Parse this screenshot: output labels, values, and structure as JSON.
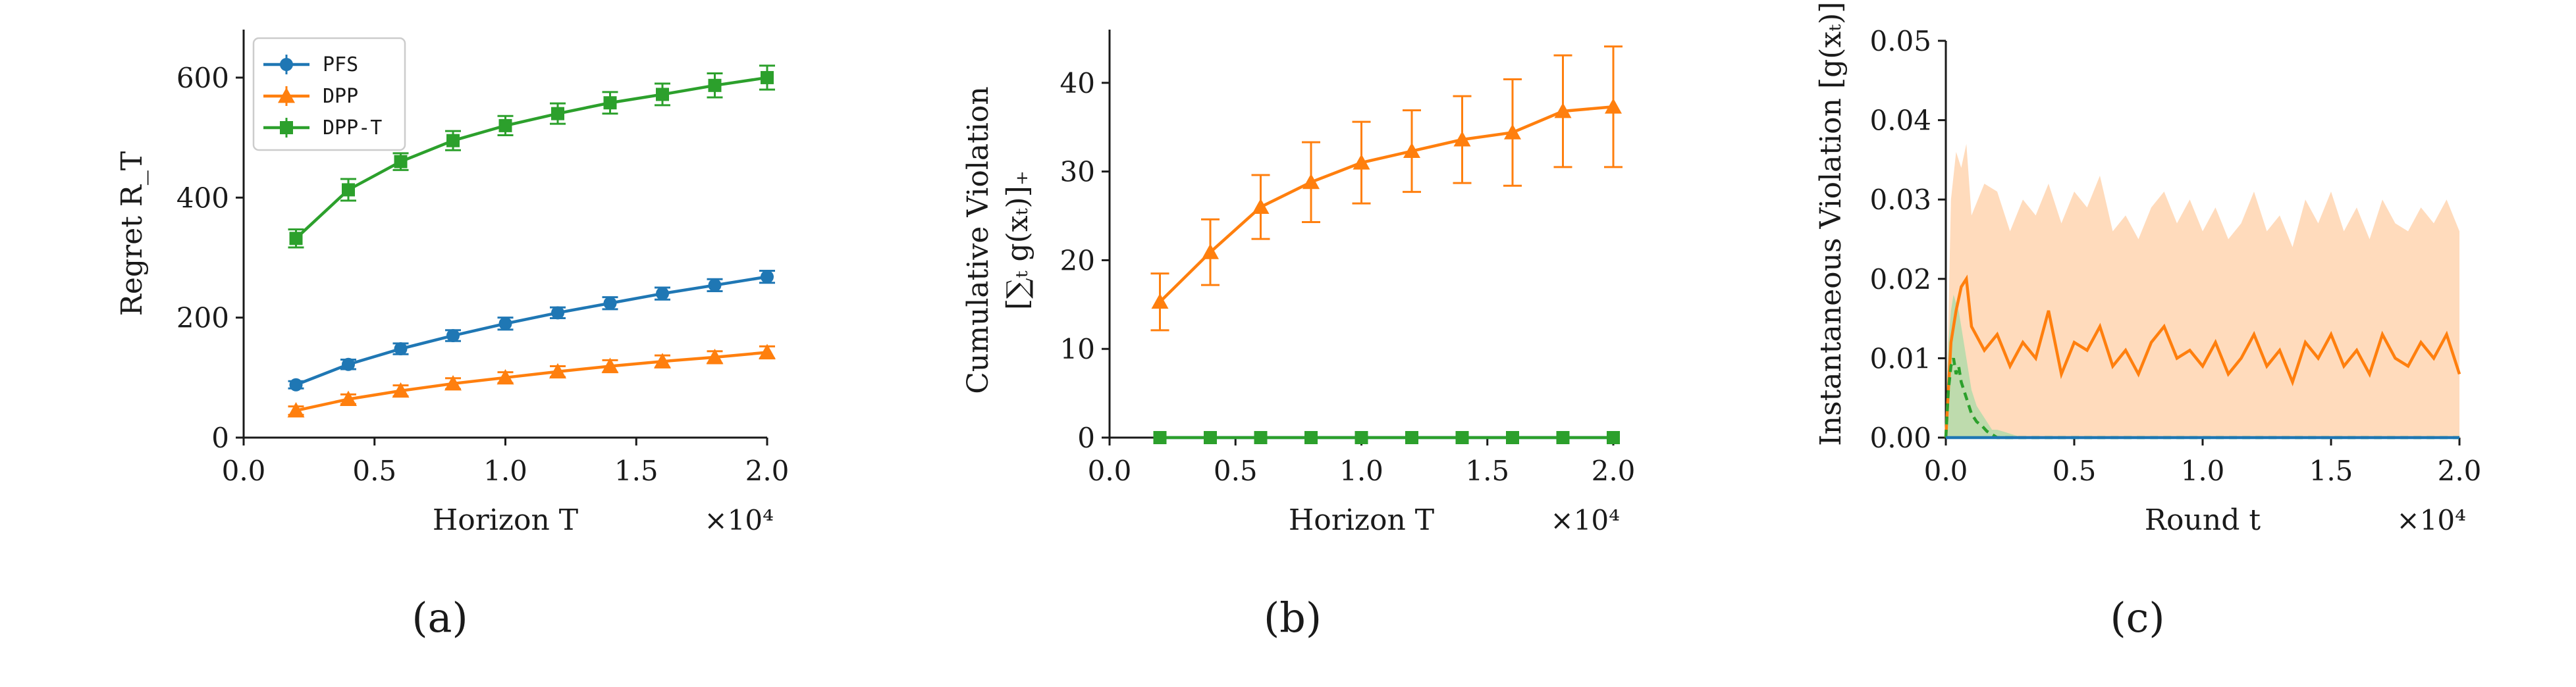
{
  "colors": {
    "pfs": "#1f77b4",
    "dpp": "#ff7f0e",
    "dppt": "#2ca02c",
    "band_dpp": "#ffd7b5",
    "band_dppt": "#a8dba8",
    "axis": "#1a1a1a"
  },
  "chart_data": [
    {
      "type": "line",
      "panel": "(a)",
      "xlabel": "Horizon T",
      "ylabel": "Regret R_T",
      "x_offset_label": "×10⁴",
      "xlim": [
        0,
        2.0
      ],
      "ylim": [
        0,
        680
      ],
      "xticks": [
        0.0,
        0.5,
        1.0,
        1.5,
        2.0
      ],
      "xtick_labels": [
        "0.0",
        "0.5",
        "1.0",
        "1.5",
        "2.0"
      ],
      "yticks": [
        0,
        200,
        400,
        600
      ],
      "ytick_labels": [
        "0",
        "200",
        "400",
        "600"
      ],
      "x": [
        0.2,
        0.4,
        0.6,
        0.8,
        1.0,
        1.2,
        1.4,
        1.6,
        1.8,
        2.0
      ],
      "legend_placement": "top-left",
      "series": [
        {
          "name": "PFS",
          "marker": "circle",
          "color_key": "pfs",
          "values": [
            88,
            122,
            148,
            170,
            190,
            208,
            224,
            240,
            254,
            268
          ],
          "err": [
            6,
            8,
            9,
            9,
            10,
            9,
            10,
            10,
            10,
            10
          ]
        },
        {
          "name": "DPP",
          "marker": "triangle",
          "color_key": "dpp",
          "values": [
            45,
            64,
            78,
            90,
            100,
            110,
            119,
            127,
            134,
            142
          ],
          "err": [
            7,
            8,
            9,
            9,
            9,
            9,
            10,
            10,
            10,
            10
          ]
        },
        {
          "name": "DPP-T",
          "marker": "square",
          "color_key": "dppt",
          "values": [
            332,
            413,
            460,
            495,
            520,
            540,
            558,
            572,
            587,
            600
          ],
          "err": [
            15,
            18,
            14,
            16,
            16,
            17,
            18,
            18,
            20,
            20
          ]
        }
      ]
    },
    {
      "type": "line",
      "panel": "(b)",
      "xlabel": "Horizon T",
      "ylabel_line1": "Cumulative Violation",
      "ylabel_line2": "[∑ₜ g(xₜ)]₊",
      "x_offset_label": "×10⁴",
      "xlim": [
        0,
        2.0
      ],
      "ylim": [
        0,
        46
      ],
      "xticks": [
        0.0,
        0.5,
        1.0,
        1.5,
        2.0
      ],
      "xtick_labels": [
        "0.0",
        "0.5",
        "1.0",
        "1.5",
        "2.0"
      ],
      "yticks": [
        0,
        10,
        20,
        30,
        40
      ],
      "ytick_labels": [
        "0",
        "10",
        "20",
        "30",
        "40"
      ],
      "x": [
        0.2,
        0.4,
        0.6,
        0.8,
        1.0,
        1.2,
        1.4,
        1.6,
        1.8,
        2.0
      ],
      "series": [
        {
          "name": "PFS",
          "marker": "circle",
          "color_key": "pfs",
          "values": [
            0,
            0,
            0,
            0,
            0,
            0,
            0,
            0,
            0,
            0
          ],
          "err": [
            0,
            0,
            0,
            0,
            0,
            0,
            0,
            0,
            0,
            0
          ]
        },
        {
          "name": "DPP",
          "marker": "triangle",
          "color_key": "dpp",
          "values": [
            15.3,
            20.9,
            26.0,
            28.8,
            31.0,
            32.3,
            33.6,
            34.4,
            36.8,
            37.3
          ],
          "err": [
            3.2,
            3.7,
            3.6,
            4.5,
            4.6,
            4.6,
            4.9,
            6.0,
            6.3,
            6.8
          ]
        },
        {
          "name": "DPP-T",
          "marker": "square",
          "color_key": "dppt",
          "values": [
            0,
            0,
            0,
            0,
            0,
            0,
            0,
            0,
            0,
            0
          ],
          "err": [
            0,
            0,
            0,
            0,
            0,
            0,
            0,
            0,
            0,
            0
          ]
        }
      ]
    },
    {
      "type": "area",
      "panel": "(c)",
      "xlabel": "Round t",
      "ylabel": "Instantaneous Violation [g(xₜ)]₊",
      "x_offset_label": "×10⁴",
      "xlim": [
        0,
        2.0
      ],
      "ylim": [
        0,
        0.05
      ],
      "xticks": [
        0.0,
        0.5,
        1.0,
        1.5,
        2.0
      ],
      "xtick_labels": [
        "0.0",
        "0.5",
        "1.0",
        "1.5",
        "2.0"
      ],
      "yticks": [
        0,
        0.01,
        0.02,
        0.03,
        0.04,
        0.05
      ],
      "ytick_labels": [
        "0.00",
        "0.01",
        "0.02",
        "0.03",
        "0.04",
        "0.05"
      ],
      "series": [
        {
          "name": "DPP",
          "style": "solid",
          "color_key": "dpp",
          "x": [
            0.0,
            0.02,
            0.04,
            0.06,
            0.08,
            0.1,
            0.15,
            0.2,
            0.25,
            0.3,
            0.35,
            0.4,
            0.45,
            0.5,
            0.55,
            0.6,
            0.65,
            0.7,
            0.75,
            0.8,
            0.85,
            0.9,
            0.95,
            1.0,
            1.05,
            1.1,
            1.15,
            1.2,
            1.25,
            1.3,
            1.35,
            1.4,
            1.45,
            1.5,
            1.55,
            1.6,
            1.65,
            1.7,
            1.75,
            1.8,
            1.85,
            1.9,
            1.95,
            2.0
          ],
          "values": [
            0.0,
            0.012,
            0.016,
            0.019,
            0.02,
            0.014,
            0.011,
            0.013,
            0.009,
            0.012,
            0.01,
            0.016,
            0.008,
            0.012,
            0.011,
            0.014,
            0.009,
            0.011,
            0.008,
            0.012,
            0.014,
            0.01,
            0.011,
            0.009,
            0.012,
            0.008,
            0.01,
            0.013,
            0.009,
            0.011,
            0.007,
            0.012,
            0.01,
            0.013,
            0.009,
            0.011,
            0.008,
            0.013,
            0.01,
            0.009,
            0.012,
            0.01,
            0.013,
            0.008
          ],
          "upper": [
            0.0,
            0.03,
            0.036,
            0.034,
            0.037,
            0.028,
            0.032,
            0.031,
            0.026,
            0.03,
            0.028,
            0.032,
            0.027,
            0.031,
            0.029,
            0.033,
            0.026,
            0.028,
            0.025,
            0.029,
            0.031,
            0.027,
            0.03,
            0.026,
            0.029,
            0.025,
            0.027,
            0.031,
            0.026,
            0.028,
            0.024,
            0.03,
            0.027,
            0.031,
            0.026,
            0.029,
            0.025,
            0.03,
            0.027,
            0.026,
            0.029,
            0.027,
            0.03,
            0.026
          ],
          "lower": 0.0
        },
        {
          "name": "DPP-T",
          "style": "dashed",
          "color_key": "dppt",
          "x": [
            0.0,
            0.01,
            0.02,
            0.03,
            0.04,
            0.05,
            0.06,
            0.07,
            0.08,
            0.09,
            0.1,
            0.12,
            0.14,
            0.16,
            0.18,
            0.2,
            0.25,
            0.3,
            2.0
          ],
          "values": [
            0.0,
            0.006,
            0.009,
            0.01,
            0.008,
            0.009,
            0.007,
            0.006,
            0.005,
            0.004,
            0.003,
            0.002,
            0.0015,
            0.0008,
            0.0004,
            0.0,
            0.0,
            0.0,
            0.0
          ],
          "upper": [
            0.0,
            0.012,
            0.016,
            0.018,
            0.017,
            0.016,
            0.014,
            0.012,
            0.01,
            0.008,
            0.006,
            0.004,
            0.003,
            0.002,
            0.001,
            0.001,
            0.0005,
            0.0,
            0.0
          ],
          "lower": 0.0
        },
        {
          "name": "PFS",
          "style": "solid",
          "color_key": "pfs",
          "x": [
            0.0,
            2.0
          ],
          "values": [
            0.0,
            0.0
          ]
        }
      ]
    }
  ]
}
